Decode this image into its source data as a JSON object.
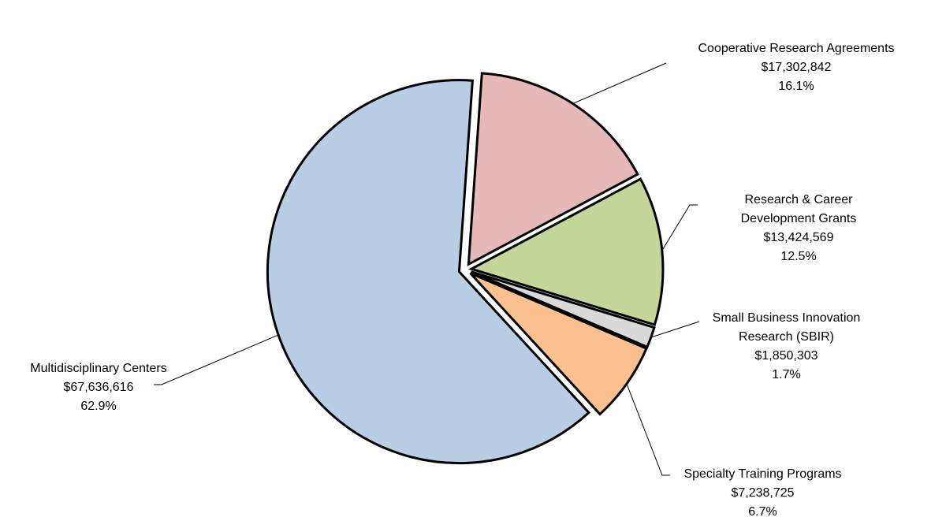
{
  "chart_data": {
    "type": "pie",
    "categories": [
      "Cooperative Research Agreements",
      "Research & Career Development Grants",
      "Small Business Innovation Research (SBIR)",
      "Specialty Training Programs",
      "Multidisciplinary Centers"
    ],
    "values": [
      17302842,
      13424569,
      1850303,
      7238725,
      67636616
    ],
    "value_labels": [
      "$17,302,842",
      "$13,424,569",
      "$1,850,303",
      "$7,238,725",
      "$67,636,616"
    ],
    "percentages": [
      16.1,
      12.5,
      1.7,
      6.7,
      62.9
    ],
    "percentage_labels": [
      "16.1%",
      "12.5%",
      "1.7%",
      "6.7%",
      "62.9%"
    ],
    "colors": [
      "#e6b8b7",
      "#c4d79b",
      "#d9d9d9",
      "#fac090",
      "#b9cde5"
    ]
  }
}
